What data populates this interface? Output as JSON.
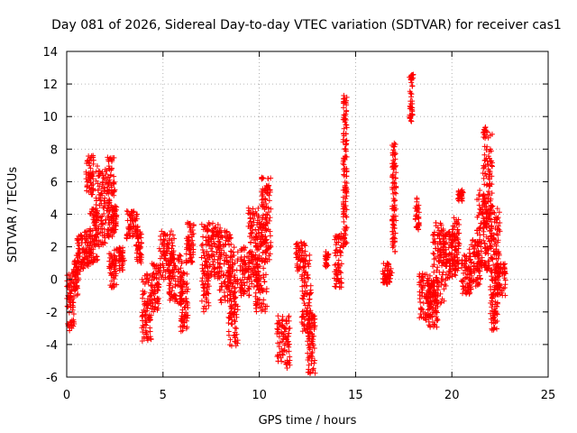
{
  "chart_data": {
    "type": "scatter",
    "title": "Day 081 of 2026, Sidereal Day-to-day VTEC variation (SDTVAR) for receiver cas1",
    "xlabel": "GPS time / hours",
    "ylabel": "SDTVAR / TECUs",
    "xlim": [
      0,
      25
    ],
    "ylim": [
      -6,
      14
    ],
    "xticks": [
      0,
      5,
      10,
      15,
      20,
      25
    ],
    "yticks": [
      -6,
      -4,
      -2,
      0,
      2,
      4,
      6,
      8,
      10,
      12,
      14
    ],
    "grid": true,
    "marker": "+",
    "marker_color": "#ff0000",
    "clusters": [
      {
        "x": [
          0.0,
          0.4
        ],
        "y": [
          -3.2,
          0.5
        ]
      },
      {
        "x": [
          0.35,
          0.6
        ],
        "y": [
          -1.0,
          1.2
        ]
      },
      {
        "x": [
          0.5,
          0.9
        ],
        "y": [
          0.5,
          2.8
        ]
      },
      {
        "x": [
          0.9,
          1.3
        ],
        "y": [
          0.8,
          3.0
        ]
      },
      {
        "x": [
          1.0,
          1.4
        ],
        "y": [
          5.2,
          7.8
        ]
      },
      {
        "x": [
          1.2,
          1.6
        ],
        "y": [
          1.0,
          4.5
        ]
      },
      {
        "x": [
          1.5,
          2.2
        ],
        "y": [
          2.0,
          7.0
        ]
      },
      {
        "x": [
          2.1,
          2.5
        ],
        "y": [
          2.5,
          7.5
        ]
      },
      {
        "x": [
          2.2,
          2.6
        ],
        "y": [
          -0.5,
          2.0
        ]
      },
      {
        "x": [
          2.4,
          2.6
        ],
        "y": [
          3.0,
          4.5
        ]
      },
      {
        "x": [
          2.7,
          3.0
        ],
        "y": [
          0.5,
          2.0
        ]
      },
      {
        "x": [
          3.1,
          3.7
        ],
        "y": [
          2.5,
          4.2
        ]
      },
      {
        "x": [
          3.6,
          3.9
        ],
        "y": [
          1.0,
          3.0
        ]
      },
      {
        "x": [
          3.9,
          4.4
        ],
        "y": [
          -3.8,
          0.5
        ]
      },
      {
        "x": [
          4.4,
          4.8
        ],
        "y": [
          -2.0,
          1.0
        ]
      },
      {
        "x": [
          4.8,
          5.6
        ],
        "y": [
          0.0,
          3.0
        ]
      },
      {
        "x": [
          5.3,
          6.0
        ],
        "y": [
          -1.5,
          1.5
        ]
      },
      {
        "x": [
          5.9,
          6.3
        ],
        "y": [
          -3.2,
          0.5
        ]
      },
      {
        "x": [
          6.2,
          6.6
        ],
        "y": [
          1.0,
          3.5
        ]
      },
      {
        "x": [
          7.0,
          7.4
        ],
        "y": [
          -2.0,
          3.5
        ]
      },
      {
        "x": [
          7.4,
          8.0
        ],
        "y": [
          0.0,
          3.5
        ]
      },
      {
        "x": [
          7.9,
          8.6
        ],
        "y": [
          -1.5,
          3.0
        ]
      },
      {
        "x": [
          8.4,
          8.9
        ],
        "y": [
          -4.2,
          2.0
        ]
      },
      {
        "x": [
          9.0,
          9.5
        ],
        "y": [
          -1.0,
          2.0
        ]
      },
      {
        "x": [
          9.4,
          10.0
        ],
        "y": [
          -0.5,
          4.5
        ]
      },
      {
        "x": [
          9.8,
          10.4
        ],
        "y": [
          -2.0,
          3.5
        ]
      },
      {
        "x": [
          10.1,
          10.6
        ],
        "y": [
          1.0,
          6.3
        ]
      },
      {
        "x": [
          10.9,
          11.6
        ],
        "y": [
          -5.5,
          -2.2
        ]
      },
      {
        "x": [
          11.9,
          12.4
        ],
        "y": [
          0.5,
          2.3
        ]
      },
      {
        "x": [
          12.2,
          12.7
        ],
        "y": [
          -3.5,
          1.5
        ]
      },
      {
        "x": [
          12.5,
          12.9
        ],
        "y": [
          -5.8,
          -2.0
        ]
      },
      {
        "x": [
          13.4,
          13.6
        ],
        "y": [
          0.7,
          1.8
        ]
      },
      {
        "x": [
          13.9,
          14.3
        ],
        "y": [
          -0.5,
          2.8
        ]
      },
      {
        "x": [
          14.35,
          14.55
        ],
        "y": [
          2.0,
          11.3
        ]
      },
      {
        "x": [
          16.4,
          16.9
        ],
        "y": [
          -0.3,
          1.0
        ]
      },
      {
        "x": [
          16.9,
          17.1
        ],
        "y": [
          1.5,
          8.4
        ]
      },
      {
        "x": [
          17.8,
          18.0
        ],
        "y": [
          9.6,
          12.6
        ]
      },
      {
        "x": [
          18.1,
          18.3
        ],
        "y": [
          3.0,
          5.0
        ]
      },
      {
        "x": [
          18.3,
          19.0
        ],
        "y": [
          -2.5,
          0.5
        ]
      },
      {
        "x": [
          18.7,
          19.3
        ],
        "y": [
          -3.0,
          0.0
        ]
      },
      {
        "x": [
          19.0,
          19.7
        ],
        "y": [
          -1.5,
          3.5
        ]
      },
      {
        "x": [
          19.5,
          20.2
        ],
        "y": [
          0.0,
          3.0
        ]
      },
      {
        "x": [
          20.0,
          20.4
        ],
        "y": [
          0.5,
          3.8
        ]
      },
      {
        "x": [
          20.3,
          20.6
        ],
        "y": [
          4.8,
          5.5
        ]
      },
      {
        "x": [
          20.5,
          21.0
        ],
        "y": [
          -1.0,
          1.5
        ]
      },
      {
        "x": [
          20.9,
          21.5
        ],
        "y": [
          -0.5,
          2.5
        ]
      },
      {
        "x": [
          21.3,
          21.9
        ],
        "y": [
          0.5,
          5.5
        ]
      },
      {
        "x": [
          21.6,
          22.1
        ],
        "y": [
          3.0,
          9.4
        ]
      },
      {
        "x": [
          21.9,
          22.5
        ],
        "y": [
          0.0,
          4.5
        ]
      },
      {
        "x": [
          22.0,
          22.4
        ],
        "y": [
          -3.2,
          0.0
        ]
      },
      {
        "x": [
          22.3,
          22.8
        ],
        "y": [
          -1.0,
          1.0
        ]
      }
    ]
  }
}
